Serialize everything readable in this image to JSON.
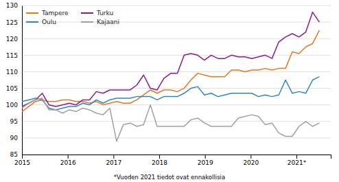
{
  "chart_data": {
    "type": "line",
    "x": [
      2015,
      2015.147727,
      2015.295455,
      2015.443182,
      2015.590909,
      2015.738636,
      2015.886364,
      2016.034091,
      2016.181818,
      2016.329545,
      2016.477273,
      2016.625,
      2016.772727,
      2016.920455,
      2017.068182,
      2017.215909,
      2017.363636,
      2017.511364,
      2017.659091,
      2017.806818,
      2017.954545,
      2018.102273,
      2018.25,
      2018.397727,
      2018.545455,
      2018.693182,
      2018.840909,
      2018.988636,
      2019.136364,
      2019.284091,
      2019.431818,
      2019.579545,
      2019.727273,
      2019.875,
      2020.022727,
      2020.170455,
      2020.318182,
      2020.465909,
      2020.613636,
      2020.761364,
      2020.909091,
      2021.056818,
      2021.204545,
      2021.352273,
      2021.5
    ],
    "series": [
      {
        "name": "Tampere",
        "color": "#E87722",
        "values": [
          98.0,
          99.5,
          101.0,
          101.5,
          101.0,
          101.0,
          101.5,
          101.5,
          101.0,
          101.0,
          100.5,
          101.0,
          100.0,
          100.5,
          101.0,
          100.5,
          100.5,
          101.5,
          103.0,
          104.5,
          103.5,
          104.5,
          104.5,
          104.0,
          105.0,
          107.5,
          109.5,
          109.0,
          108.5,
          108.5,
          108.5,
          110.5,
          110.5,
          110.0,
          110.5,
          110.5,
          111.0,
          110.5,
          111.0,
          111.0,
          116.0,
          115.5,
          117.5,
          118.5,
          122.5
        ]
      },
      {
        "name": "Turku",
        "color": "#8B1A8B",
        "values": [
          99.5,
          100.5,
          101.5,
          103.5,
          100.0,
          99.5,
          100.0,
          100.5,
          100.0,
          101.5,
          101.5,
          104.0,
          103.5,
          104.5,
          104.5,
          104.5,
          104.5,
          106.0,
          109.0,
          105.0,
          104.5,
          108.0,
          109.5,
          109.5,
          115.0,
          115.5,
          115.0,
          113.5,
          115.0,
          114.0,
          114.0,
          115.0,
          114.5,
          114.5,
          114.0,
          114.5,
          115.0,
          114.0,
          119.0,
          120.5,
          121.5,
          120.5,
          122.0,
          128.0,
          125.0
        ]
      },
      {
        "name": "Oulu",
        "color": "#2E86C1",
        "values": [
          101.0,
          101.5,
          102.0,
          101.5,
          99.0,
          98.5,
          99.0,
          99.5,
          99.5,
          100.5,
          100.0,
          101.5,
          100.5,
          101.5,
          102.0,
          102.0,
          102.0,
          102.5,
          102.5,
          102.5,
          101.5,
          102.5,
          102.5,
          102.5,
          103.5,
          105.0,
          105.5,
          103.0,
          103.5,
          102.5,
          103.0,
          103.5,
          103.5,
          103.5,
          103.5,
          102.5,
          103.0,
          102.5,
          103.0,
          107.5,
          103.5,
          104.0,
          103.5,
          107.5,
          108.5
        ]
      },
      {
        "name": "Kajaani",
        "color": "#A0A0A0",
        "values": [
          99.0,
          100.5,
          101.5,
          102.0,
          98.5,
          98.5,
          97.5,
          98.5,
          98.0,
          99.0,
          98.5,
          97.5,
          97.0,
          99.0,
          89.0,
          94.0,
          94.5,
          93.5,
          94.0,
          100.0,
          93.5,
          93.5,
          93.5,
          93.5,
          93.5,
          95.5,
          96.0,
          94.5,
          93.5,
          93.5,
          93.5,
          93.5,
          96.0,
          96.5,
          97.0,
          96.5,
          94.0,
          94.5,
          91.5,
          90.5,
          90.5,
          93.5,
          95.0,
          93.5,
          94.5
        ]
      }
    ],
    "xlim": [
      2015.0,
      2021.75
    ],
    "xticks": [
      2015,
      2016,
      2017,
      2018,
      2019,
      2020,
      {
        "value": 2021,
        "label": "2021*"
      }
    ],
    "ylim": [
      85,
      130
    ],
    "yticks": [
      85,
      90,
      95,
      100,
      105,
      110,
      115,
      120,
      125,
      130
    ],
    "grid": "y",
    "legend": "upper left",
    "annotations": [
      "*Vuoden 2021 tiedot ovat ennakollisia"
    ]
  }
}
